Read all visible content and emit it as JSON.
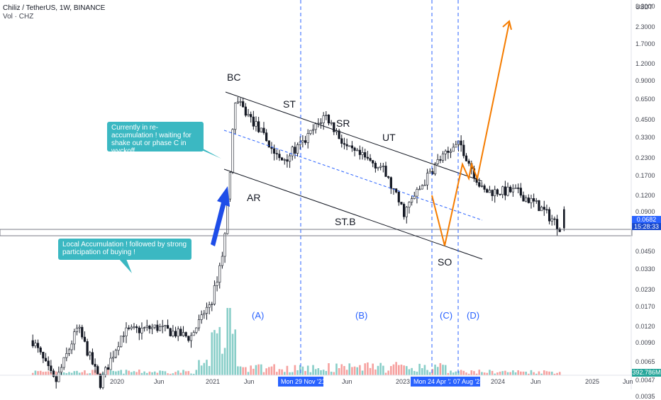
{
  "header": {
    "title": "Chiliz / TetherUS, 1W, BINANCE",
    "subtitle": "Vol · CHZ"
  },
  "annotations": {
    "bubble_reaccumulation": "Currently in re-accumulation ! waiting for shake out or phase C in wyckoff",
    "bubble_local": "Local Accumulation ! followed by strong participation of buying !",
    "wyckoff": {
      "BC": "BC",
      "ST": "ST",
      "SR": "SR",
      "UT": "UT",
      "AR": "AR",
      "STB": "ST.B",
      "SO": "SO"
    },
    "phases": {
      "A": "(A)",
      "B": "(B)",
      "C": "(C)",
      "D": "(D)"
    }
  },
  "axis": {
    "unit": "USDT",
    "price_tag": "0.0682",
    "countdown_tag": "15:28:33",
    "volume_tag": "392.786M",
    "highlight_dates": [
      "Mon 29 Nov '21",
      "Mon 24 Apr '23",
      "07 Aug '23"
    ]
  },
  "colors": {
    "up": "#26a69a",
    "down": "#ef5350",
    "candle": "#131722",
    "channel": "#131722",
    "midline": "#2962ff",
    "phase_line": "#2962ff",
    "arrow": "#1e4de8",
    "projection": "#f57c00",
    "bubble": "#3bb8c2"
  },
  "chart_data": {
    "type": "candlestick",
    "y_scale": "log",
    "y_ticks": [
      "4.5000",
      "3.3000",
      "2.3000",
      "1.7000",
      "1.2000",
      "0.9000",
      "0.6500",
      "0.4500",
      "0.3300",
      "0.2300",
      "0.1700",
      "0.1200",
      "0.0900",
      "0.0450",
      "0.0330",
      "0.0230",
      "0.0170",
      "0.0120",
      "0.0090",
      "0.0065",
      "0.0047",
      "0.0035"
    ],
    "x_ticks": [
      "2020",
      "Jun",
      "2021",
      "Jun",
      "Jun",
      "2023",
      "2024",
      "Jun",
      "2025",
      "Jun"
    ],
    "current_price": 0.0682,
    "price_path": [
      [
        "2019-09",
        0.0095
      ],
      [
        "2019-11",
        0.0045
      ],
      [
        "2020-01",
        0.012
      ],
      [
        "2020-03",
        0.0045
      ],
      [
        "2020-05",
        0.011
      ],
      [
        "2020-08",
        0.012
      ],
      [
        "2020-11",
        0.01
      ],
      [
        "2021-01",
        0.02
      ],
      [
        "2021-02",
        0.05
      ],
      [
        "2021-03",
        0.65
      ],
      [
        "2021-05",
        0.4
      ],
      [
        "2021-07",
        0.22
      ],
      [
        "2021-09",
        0.3
      ],
      [
        "2021-11",
        0.5
      ],
      [
        "2022-01",
        0.27
      ],
      [
        "2022-04",
        0.2
      ],
      [
        "2022-06",
        0.09
      ],
      [
        "2022-09",
        0.22
      ],
      [
        "2022-11",
        0.3
      ],
      [
        "2023-01",
        0.13
      ],
      [
        "2023-04",
        0.13
      ],
      [
        "2023-06",
        0.1
      ],
      [
        "2023-08",
        0.0682
      ]
    ],
    "projection": [
      [
        "2023-09",
        0.041
      ],
      [
        "2023-12",
        0.2
      ],
      [
        "2024-01",
        0.14
      ],
      [
        "2024-02",
        0.2
      ],
      [
        "2024-03",
        0.15
      ],
      [
        "2024-09",
        3.8
      ]
    ]
  }
}
